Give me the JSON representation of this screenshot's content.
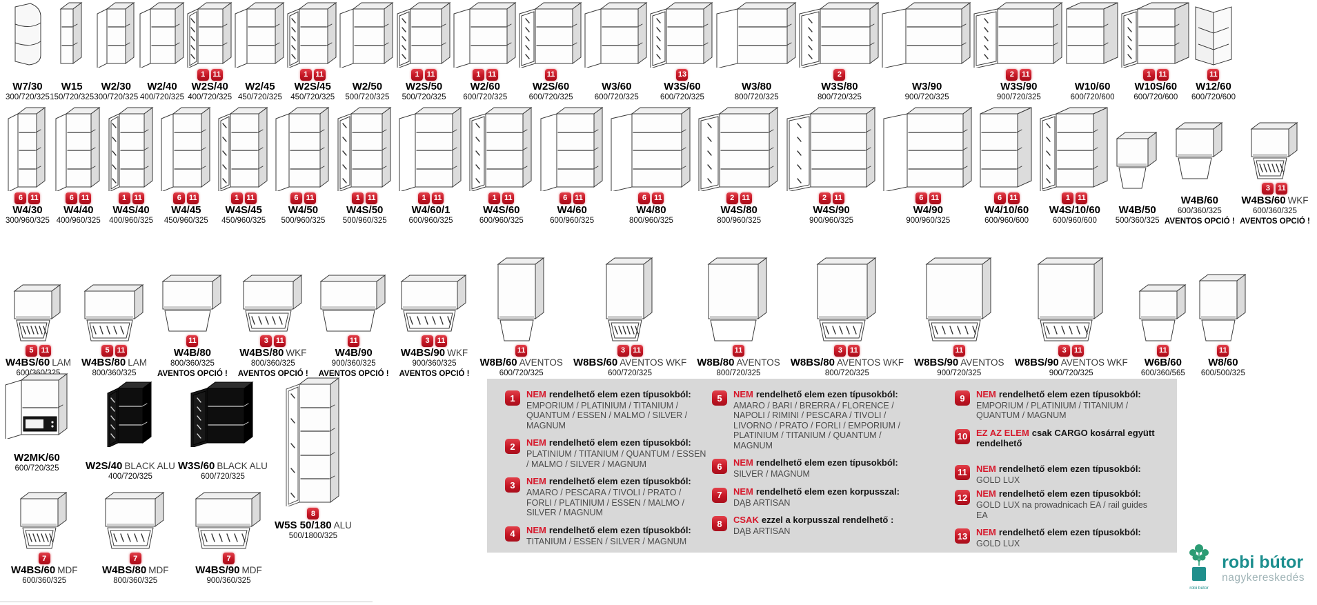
{
  "catalog": {
    "rows": [
      {
        "id": "wall-cabinets-row-1",
        "items": [
          {
            "model": "W7/30",
            "suffix": "",
            "dims": "300/720/325",
            "badges": [],
            "glyph": "corner-open-shelf"
          },
          {
            "model": "W15",
            "suffix": "",
            "dims": "150/720/325",
            "badges": [],
            "glyph": "open-box"
          },
          {
            "model": "W2/30",
            "suffix": "",
            "dims": "300/720/325",
            "badges": [],
            "glyph": "open-door-box"
          },
          {
            "model": "W2/40",
            "suffix": "",
            "dims": "400/720/325",
            "badges": [],
            "glyph": "open-door-box"
          },
          {
            "model": "W2S/40",
            "suffix": "",
            "dims": "400/720/325",
            "badges": [
              "1",
              "11"
            ],
            "glyph": "glass-door-box"
          },
          {
            "model": "W2/45",
            "suffix": "",
            "dims": "450/720/325",
            "badges": [],
            "glyph": "open-door-box"
          },
          {
            "model": "W2S/45",
            "suffix": "",
            "dims": "450/720/325",
            "badges": [
              "1",
              "11"
            ],
            "glyph": "glass-door-box"
          },
          {
            "model": "W2/50",
            "suffix": "",
            "dims": "500/720/325",
            "badges": [],
            "glyph": "open-door-box"
          },
          {
            "model": "W2S/50",
            "suffix": "",
            "dims": "500/720/325",
            "badges": [
              "1",
              "11"
            ],
            "glyph": "glass-door-box"
          },
          {
            "model": "W2/60",
            "suffix": "",
            "dims": "600/720/325",
            "badges": [
              "1",
              "11"
            ],
            "glyph": "open-door-box"
          },
          {
            "model": "W2S/60",
            "suffix": "",
            "dims": "600/720/325",
            "badges": [
              "11"
            ],
            "glyph": "glass-door-box"
          },
          {
            "model": "W3/60",
            "suffix": "",
            "dims": "600/720/325",
            "badges": [],
            "glyph": "open-door-box"
          },
          {
            "model": "W3S/60",
            "suffix": "",
            "dims": "600/720/325",
            "badges": [
              "13"
            ],
            "glyph": "glass-door-box"
          },
          {
            "model": "W3/80",
            "suffix": "",
            "dims": "800/720/325",
            "badges": [],
            "glyph": "open-door-box"
          },
          {
            "model": "W3S/80",
            "suffix": "",
            "dims": "800/720/325",
            "badges": [
              "2"
            ],
            "glyph": "glass-door-box"
          },
          {
            "model": "W3/90",
            "suffix": "",
            "dims": "900/720/325",
            "badges": [],
            "glyph": "open-door-box"
          },
          {
            "model": "W3S/90",
            "suffix": "",
            "dims": "900/720/325",
            "badges": [
              "2",
              "11"
            ],
            "glyph": "glass-door-box"
          },
          {
            "model": "W10/60",
            "suffix": "",
            "dims": "600/720/600",
            "badges": [],
            "glyph": "corner-box"
          },
          {
            "model": "W10S/60",
            "suffix": "",
            "dims": "600/720/600",
            "badges": [
              "1",
              "11"
            ],
            "glyph": "corner-glass-box"
          },
          {
            "model": "W12/60",
            "suffix": "",
            "dims": "600/720/600",
            "badges": [
              "11"
            ],
            "glyph": "corner-l-box"
          }
        ]
      },
      {
        "id": "wall-cabinets-row-2",
        "items": [
          {
            "model": "W4/30",
            "suffix": "",
            "dims": "300/960/325",
            "badges": [
              "6",
              "11"
            ],
            "glyph": "open-door-box"
          },
          {
            "model": "W4/40",
            "suffix": "",
            "dims": "400/960/325",
            "badges": [
              "6",
              "11"
            ],
            "glyph": "open-door-box"
          },
          {
            "model": "W4S/40",
            "suffix": "",
            "dims": "400/960/325",
            "badges": [
              "1",
              "11"
            ],
            "glyph": "glass-door-box"
          },
          {
            "model": "W4/45",
            "suffix": "",
            "dims": "450/960/325",
            "badges": [
              "6",
              "11"
            ],
            "glyph": "open-door-box"
          },
          {
            "model": "W4S/45",
            "suffix": "",
            "dims": "450/960/325",
            "badges": [
              "1",
              "11"
            ],
            "glyph": "glass-door-box"
          },
          {
            "model": "W4/50",
            "suffix": "",
            "dims": "500/960/325",
            "badges": [
              "6",
              "11"
            ],
            "glyph": "open-door-box"
          },
          {
            "model": "W4S/50",
            "suffix": "",
            "dims": "500/960/325",
            "badges": [
              "1",
              "11"
            ],
            "glyph": "glass-door-box"
          },
          {
            "model": "W4/60/1",
            "suffix": "",
            "dims": "600/960/325",
            "badges": [
              "1",
              "11"
            ],
            "glyph": "open-door-box"
          },
          {
            "model": "W4S/60",
            "suffix": "",
            "dims": "600/960/325",
            "badges": [
              "1",
              "11"
            ],
            "glyph": "glass-door-box"
          },
          {
            "model": "W4/60",
            "suffix": "",
            "dims": "600/960/325",
            "badges": [
              "6",
              "11"
            ],
            "glyph": "open-door-box"
          },
          {
            "model": "W4/80",
            "suffix": "",
            "dims": "800/960/325",
            "badges": [
              "6",
              "11"
            ],
            "glyph": "open-door-box"
          },
          {
            "model": "W4S/80",
            "suffix": "",
            "dims": "800/960/325",
            "badges": [
              "2",
              "11"
            ],
            "glyph": "glass-door-box"
          },
          {
            "model": "W4S/90",
            "suffix": "",
            "dims": "900/960/325",
            "badges": [
              "2",
              "11"
            ],
            "glyph": "glass-door-box"
          },
          {
            "model": "W4/90",
            "suffix": "",
            "dims": "900/960/325",
            "badges": [
              "6",
              "11"
            ],
            "glyph": "open-door-box"
          },
          {
            "model": "W4/10/60",
            "suffix": "",
            "dims": "600/960/600",
            "badges": [
              "6",
              "11"
            ],
            "glyph": "corner-box"
          },
          {
            "model": "W4S/10/60",
            "suffix": "",
            "dims": "600/960/600",
            "badges": [
              "1",
              "11"
            ],
            "glyph": "corner-glass-box"
          },
          {
            "model": "W4B/50",
            "suffix": "",
            "dims": "500/360/325",
            "badges": [],
            "glyph": "flip-solid-box"
          },
          {
            "model": "W4B/60",
            "suffix": "",
            "dims": "600/360/325",
            "badges": [],
            "glyph": "flip-solid-box",
            "note": "AVENTOS OPCIÓ !"
          },
          {
            "model": "W4BS/60",
            "suffix": "WKF",
            "dims": "600/360/325",
            "badges": [
              "3",
              "11"
            ],
            "glyph": "flip-glass-box",
            "note": "AVENTOS OPCIÓ !"
          }
        ]
      },
      {
        "id": "wall-cabinets-row-3",
        "items": [
          {
            "model": "W4BS/60",
            "suffix": "LAM",
            "dims": "600/360/325",
            "badges": [
              "5",
              "11"
            ],
            "glyph": "flip-glass-box"
          },
          {
            "model": "W4BS/80",
            "suffix": "LAM",
            "dims": "800/360/325",
            "badges": [
              "5",
              "11"
            ],
            "glyph": "flip-glass-box"
          },
          {
            "model": "W4B/80",
            "suffix": "",
            "dims": "800/360/325",
            "badges": [
              "11"
            ],
            "glyph": "flip-solid-box",
            "note": "AVENTOS OPCIÓ !"
          },
          {
            "model": "W4BS/80",
            "suffix": "WKF",
            "dims": "800/360/325",
            "badges": [
              "3",
              "11"
            ],
            "glyph": "flip-glass-box",
            "note": "AVENTOS OPCIÓ !"
          },
          {
            "model": "W4B/90",
            "suffix": "",
            "dims": "900/360/325",
            "badges": [
              "11"
            ],
            "glyph": "flip-solid-box",
            "note": "AVENTOS OPCIÓ !"
          },
          {
            "model": "W4BS/90",
            "suffix": "WKF",
            "dims": "900/360/325",
            "badges": [
              "3",
              "11"
            ],
            "glyph": "flip-glass-box",
            "note": "AVENTOS OPCIÓ !"
          },
          {
            "model": "W8B/60",
            "suffix": "AVENTOS",
            "dims": "600/720/325",
            "badges": [
              "11"
            ],
            "glyph": "aventos-solid-box"
          },
          {
            "model": "W8BS/60",
            "suffix": "AVENTOS WKF",
            "dims": "600/720/325",
            "badges": [
              "3",
              "11"
            ],
            "glyph": "aventos-glass-box"
          },
          {
            "model": "W8B/80",
            "suffix": "AVENTOS",
            "dims": "800/720/325",
            "badges": [
              "11"
            ],
            "glyph": "aventos-solid-box"
          },
          {
            "model": "W8BS/80",
            "suffix": "AVENTOS WKF",
            "dims": "800/720/325",
            "badges": [
              "3",
              "11"
            ],
            "glyph": "aventos-glass-box"
          },
          {
            "model": "W8BS/90",
            "suffix": "AVENTOS",
            "dims": "900/720/325",
            "badges": [
              "11"
            ],
            "glyph": "aventos-glass-box"
          },
          {
            "model": "W8BS/90",
            "suffix": "AVENTOS WKF",
            "dims": "900/720/325",
            "badges": [
              "3",
              "11"
            ],
            "glyph": "aventos-glass-box"
          },
          {
            "model": "W6B/60",
            "suffix": "",
            "dims": "600/360/565",
            "badges": [
              "11"
            ],
            "glyph": "flip-solid-box"
          },
          {
            "model": "W8/60",
            "suffix": "",
            "dims": "600/500/325",
            "badges": [
              "11"
            ],
            "glyph": "flip-solid-box"
          }
        ]
      },
      {
        "id": "bottom-special-row",
        "items": [
          {
            "model": "W2MK/60",
            "suffix": "",
            "dims": "600/720/325",
            "badges": [],
            "glyph": "microwave-box"
          },
          {
            "model": "W2S/40",
            "suffix": "BLACK ALU",
            "dims": "400/720/325",
            "badges": [],
            "glyph": "black-glass-box"
          },
          {
            "model": "W3S/60",
            "suffix": "BLACK ALU",
            "dims": "600/720/325",
            "badges": [],
            "glyph": "black-glass-box"
          },
          {
            "model": "W5S 50/180",
            "suffix": "ALU",
            "dims": "500/1800/325",
            "badges": [
              "8"
            ],
            "glyph": "glass-vitrine-box"
          }
        ]
      },
      {
        "id": "bottom-mdf-row",
        "items": [
          {
            "model": "W4BS/60",
            "suffix": "MDF",
            "dims": "600/360/325",
            "badges": [
              "7"
            ],
            "glyph": "flip-glass-box"
          },
          {
            "model": "W4BS/80",
            "suffix": "MDF",
            "dims": "800/360/325",
            "badges": [
              "7"
            ],
            "glyph": "flip-glass-box"
          },
          {
            "model": "W4BS/90",
            "suffix": "MDF",
            "dims": "900/360/325",
            "badges": [
              "7"
            ],
            "glyph": "flip-glass-box"
          }
        ]
      }
    ]
  },
  "legend": {
    "columns": [
      [
        {
          "num": "1",
          "lead": "NEM",
          "head": "rendelhető elem ezen típusokból:",
          "body": "EMPORIUM / PLATINIUM / TITANIUM / QUANTUM / ESSEN / MALMO / SILVER / MAGNUM"
        },
        {
          "num": "2",
          "lead": "NEM",
          "head": "rendelhető elem ezen típusokból:",
          "body": "PLATINIUM / TITANIUM / QUANTUM / ESSEN / MALMO / SILVER / MAGNUM"
        },
        {
          "num": "3",
          "lead": "NEM",
          "head": "rendelhető elem ezen típusokból:",
          "body": "AMARO / PESCARA / TIVOLI / PRATO / FORLI / PLATINIUM / ESSEN / MALMO / SILVER / MAGNUM"
        },
        {
          "num": "4",
          "lead": "NEM",
          "head": "rendelhető elem ezen típusokból:",
          "body": "TITANIUM / ESSEN / SILVER / MAGNUM"
        }
      ],
      [
        {
          "num": "5",
          "lead": "NEM",
          "head": "rendelhető elem ezen típusokból:",
          "body": "AMARO / BARI / BRERRA / FLORENCE / NAPOLI / RIMINI / PESCARA / TIVOLI / LIVORNO / PRATO / FORLI / EMPORIUM / PLATINIUM / TITANIUM / QUANTUM / MAGNUM"
        },
        {
          "num": "6",
          "lead": "NEM",
          "head": "rendelhető elem ezen típusokból:",
          "body": "SILVER / MAGNUM"
        },
        {
          "num": "7",
          "lead": "NEM",
          "head": "rendelhető elem ezen korpusszal:",
          "body": "DĄB ARTISAN"
        },
        {
          "num": "8",
          "lead": "CSAK",
          "head": "ezzel a korpusszal rendelhető :",
          "body": "DĄB ARTISAN"
        }
      ],
      [
        {
          "num": "9",
          "lead": "NEM",
          "head": "rendelhető elem ezen típusokból:",
          "body": "EMPORIUM / PLATINIUM / TITANIUM / QUANTUM / MAGNUM"
        },
        {
          "num": "10",
          "lead": "EZ AZ ELEM",
          "head": "csak CARGO kosárral  együtt rendelhető",
          "body": ""
        },
        {
          "num": "11",
          "lead": "NEM",
          "head": "rendelhető elem ezen típusokból:",
          "body": "GOLD LUX"
        },
        {
          "num": "12",
          "lead": "NEM",
          "head": "rendelhető elem ezen típusokból:",
          "body": "GOLD LUX na prowadnicach EA / rail guides EA"
        },
        {
          "num": "13",
          "lead": "NEM",
          "head": "rendelhető elem ezen típusokból:",
          "body": "GOLD LUX"
        }
      ]
    ]
  },
  "logo": {
    "brand": "robi bútor",
    "tagline": "nagykereskedés",
    "icon_caption": "robi bútor"
  },
  "colors": {
    "badge_red": "#c41624",
    "legend_bg": "#d8d8d8",
    "legend_red": "#d6182b",
    "brand_teal": "#1b8e8e",
    "brand_gray": "#9fb3b6"
  }
}
